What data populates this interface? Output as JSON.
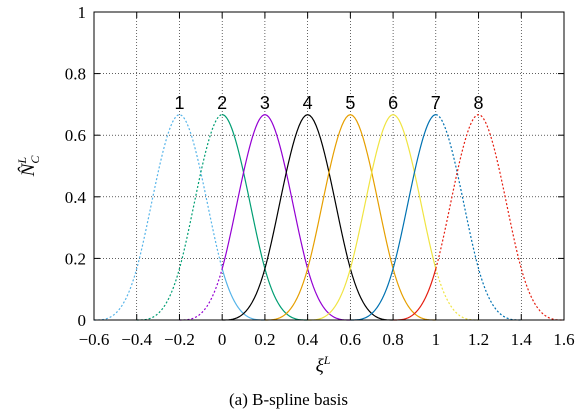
{
  "caption": "(a)  B-spline basis",
  "chart_data": {
    "type": "line",
    "title": "",
    "xlabel": "ξ^L",
    "ylabel": "N̂_C^L",
    "xlim": [
      -0.6,
      1.6
    ],
    "ylim": [
      0,
      1
    ],
    "x_ticks": [
      "−0.6",
      "−0.4",
      "−0.2",
      "0",
      "0.2",
      "0.4",
      "0.6",
      "0.8",
      "1",
      "1.2",
      "1.4",
      "1.6"
    ],
    "y_ticks": [
      "0",
      "0.2",
      "0.4",
      "0.6",
      "0.8",
      "1"
    ],
    "grid": true,
    "domain_solid": [
      0,
      1
    ],
    "knot_spacing": 0.2,
    "basis": "cubic B-spline, peak 2/3",
    "series": [
      {
        "name": "1",
        "center": -0.2,
        "color": "#56b4e9"
      },
      {
        "name": "2",
        "center": 0.0,
        "color": "#009e73"
      },
      {
        "name": "3",
        "center": 0.2,
        "color": "#9400d3"
      },
      {
        "name": "4",
        "center": 0.4,
        "color": "#000000"
      },
      {
        "name": "5",
        "center": 0.6,
        "color": "#e69f00"
      },
      {
        "name": "6",
        "center": 0.8,
        "color": "#f0e442"
      },
      {
        "name": "7",
        "center": 1.0,
        "color": "#0072b2"
      },
      {
        "name": "8",
        "center": 1.2,
        "color": "#e51e10"
      }
    ]
  }
}
